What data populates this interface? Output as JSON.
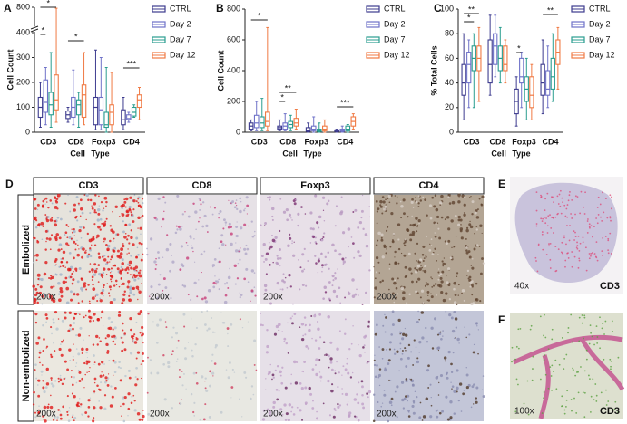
{
  "chart_data": [
    {
      "type": "box",
      "panel": "A",
      "ylabel": "Cell Count",
      "xlabel": "Cell Type",
      "categories": [
        "CD3",
        "CD8",
        "Foxp3",
        "CD4"
      ],
      "ylim": [
        0,
        800
      ],
      "ybreak": 400,
      "yticks": [
        0,
        100,
        200,
        300,
        400,
        800
      ],
      "annotations": [
        "*",
        "*",
        "*",
        "***"
      ],
      "series": [
        {
          "name": "CTRL",
          "color": "#3d3b8e",
          "values": [
            {
              "min": 20,
              "q1": 60,
              "median": 100,
              "q3": 140,
              "max": 200
            },
            {
              "min": 40,
              "q1": 55,
              "median": 70,
              "q3": 85,
              "max": 100
            },
            {
              "min": 10,
              "q1": 30,
              "median": 100,
              "q3": 140,
              "max": 330
            },
            {
              "min": 10,
              "q1": 30,
              "median": 50,
              "q3": 90,
              "max": 140
            }
          ]
        },
        {
          "name": "Day 2",
          "color": "#6f72c8",
          "values": [
            {
              "min": 30,
              "q1": 80,
              "median": 120,
              "q3": 210,
              "max": 260
            },
            {
              "min": 30,
              "q1": 60,
              "median": 100,
              "q3": 140,
              "max": 250
            },
            {
              "min": 10,
              "q1": 30,
              "median": 90,
              "q3": 140,
              "max": 300
            },
            {
              "min": 40,
              "q1": 50,
              "median": 55,
              "q3": 70,
              "max": 80
            }
          ]
        },
        {
          "name": "Day 7",
          "color": "#2a9d8f",
          "values": [
            {
              "min": 20,
              "q1": 70,
              "median": 110,
              "q3": 160,
              "max": 320
            },
            {
              "min": 20,
              "q1": 70,
              "median": 110,
              "q3": 130,
              "max": 160
            },
            {
              "min": 0,
              "q1": 20,
              "median": 30,
              "q3": 80,
              "max": 260
            },
            {
              "min": 60,
              "q1": 65,
              "median": 80,
              "q3": 100,
              "max": 110
            }
          ]
        },
        {
          "name": "Day 12",
          "color": "#f07a44",
          "values": [
            {
              "min": 40,
              "q1": 90,
              "median": 130,
              "q3": 230,
              "max": 780
            },
            {
              "min": 30,
              "q1": 60,
              "median": 150,
              "q3": 190,
              "max": 320
            },
            {
              "min": 0,
              "q1": 30,
              "median": 80,
              "q3": 110,
              "max": 240
            },
            {
              "min": 50,
              "q1": 100,
              "median": 130,
              "q3": 150,
              "max": 180
            }
          ]
        }
      ]
    },
    {
      "type": "box",
      "panel": "B",
      "ylabel": "Cell Count",
      "xlabel": "Cell Type",
      "categories": [
        "CD3",
        "CD8",
        "Foxp3",
        "CD4"
      ],
      "ylim": [
        0,
        800
      ],
      "yticks": [
        0,
        200,
        400,
        600,
        800
      ],
      "annotations": [
        "*",
        "*",
        "**",
        "***"
      ],
      "series": [
        {
          "name": "CTRL",
          "color": "#3d3b8e",
          "values": [
            {
              "min": 10,
              "q1": 20,
              "median": 40,
              "q3": 60,
              "max": 80
            },
            {
              "min": 10,
              "q1": 20,
              "median": 30,
              "q3": 40,
              "max": 80
            },
            {
              "min": 0,
              "q1": 5,
              "median": 10,
              "q3": 30,
              "max": 60
            },
            {
              "min": 0,
              "q1": 5,
              "median": 10,
              "q3": 15,
              "max": 20
            }
          ]
        },
        {
          "name": "Day 2",
          "color": "#6f72c8",
          "values": [
            {
              "min": 10,
              "q1": 30,
              "median": 60,
              "q3": 110,
              "max": 200
            },
            {
              "min": 10,
              "q1": 20,
              "median": 40,
              "q3": 60,
              "max": 120
            },
            {
              "min": 0,
              "q1": 10,
              "median": 20,
              "q3": 40,
              "max": 100
            },
            {
              "min": 0,
              "q1": 5,
              "median": 10,
              "q3": 20,
              "max": 40
            }
          ]
        },
        {
          "name": "Day 7",
          "color": "#2a9d8f",
          "values": [
            {
              "min": 10,
              "q1": 30,
              "median": 60,
              "q3": 100,
              "max": 220
            },
            {
              "min": 10,
              "q1": 30,
              "median": 50,
              "q3": 70,
              "max": 110
            },
            {
              "min": 0,
              "q1": 5,
              "median": 10,
              "q3": 20,
              "max": 60
            },
            {
              "min": 0,
              "q1": 10,
              "median": 20,
              "q3": 40,
              "max": 50
            }
          ]
        },
        {
          "name": "Day 12",
          "color": "#f07a44",
          "values": [
            {
              "min": 10,
              "q1": 40,
              "median": 70,
              "q3": 130,
              "max": 680
            },
            {
              "min": 20,
              "q1": 40,
              "median": 60,
              "q3": 90,
              "max": 150
            },
            {
              "min": 0,
              "q1": 10,
              "median": 20,
              "q3": 40,
              "max": 80
            },
            {
              "min": 20,
              "q1": 40,
              "median": 70,
              "q3": 100,
              "max": 120
            }
          ]
        }
      ]
    },
    {
      "type": "box",
      "panel": "C",
      "ylabel": "% Total Cells",
      "xlabel": "Cell Type",
      "categories": [
        "CD3",
        "CD8",
        "Foxp3",
        "CD4"
      ],
      "ylim": [
        0,
        100
      ],
      "yticks": [
        0,
        20,
        40,
        60,
        80,
        100
      ],
      "annotations": [
        "**",
        "*",
        "*",
        "**"
      ],
      "series": [
        {
          "name": "CTRL",
          "color": "#3d3b8e",
          "values": [
            {
              "min": 10,
              "q1": 30,
              "median": 40,
              "q3": 55,
              "max": 80
            },
            {
              "min": 30,
              "q1": 40,
              "median": 55,
              "q3": 75,
              "max": 95
            },
            {
              "min": 5,
              "q1": 15,
              "median": 25,
              "q3": 35,
              "max": 45
            },
            {
              "min": 15,
              "q1": 30,
              "median": 40,
              "q3": 55,
              "max": 75
            }
          ]
        },
        {
          "name": "Day 2",
          "color": "#6f72c8",
          "values": [
            {
              "min": 20,
              "q1": 40,
              "median": 55,
              "q3": 65,
              "max": 75
            },
            {
              "min": 45,
              "q1": 55,
              "median": 70,
              "q3": 80,
              "max": 95
            },
            {
              "min": 20,
              "q1": 40,
              "median": 45,
              "q3": 60,
              "max": 65
            },
            {
              "min": 20,
              "q1": 30,
              "median": 35,
              "q3": 50,
              "max": 70
            }
          ]
        },
        {
          "name": "Day 7",
          "color": "#2a9d8f",
          "values": [
            {
              "min": 20,
              "q1": 50,
              "median": 60,
              "q3": 70,
              "max": 80
            },
            {
              "min": 40,
              "q1": 50,
              "median": 60,
              "q3": 70,
              "max": 85
            },
            {
              "min": 10,
              "q1": 25,
              "median": 35,
              "q3": 45,
              "max": 60
            },
            {
              "min": 25,
              "q1": 35,
              "median": 45,
              "q3": 60,
              "max": 80
            }
          ]
        },
        {
          "name": "Day 12",
          "color": "#f07a44",
          "values": [
            {
              "min": 25,
              "q1": 50,
              "median": 60,
              "q3": 70,
              "max": 85
            },
            {
              "min": 40,
              "q1": 50,
              "median": 55,
              "q3": 70,
              "max": 75
            },
            {
              "min": 10,
              "q1": 20,
              "median": 30,
              "q3": 45,
              "max": 55
            },
            {
              "min": 35,
              "q1": 55,
              "median": 65,
              "q3": 75,
              "max": 85
            }
          ]
        }
      ]
    }
  ],
  "micrographs": {
    "panel_d": "D",
    "panel_e": "E",
    "panel_f": "F",
    "columns": [
      "CD3",
      "CD8",
      "Foxp3",
      "CD4"
    ],
    "rows": [
      "Embolized",
      "Non-embolized"
    ],
    "magnifications": [
      [
        "200x",
        "200x",
        "200x",
        "200x"
      ],
      [
        "200x",
        "200x",
        "200x",
        "200x"
      ]
    ],
    "e_mag": "40x",
    "e_stain": "CD3",
    "f_mag": "100x",
    "f_stain": "CD3"
  }
}
